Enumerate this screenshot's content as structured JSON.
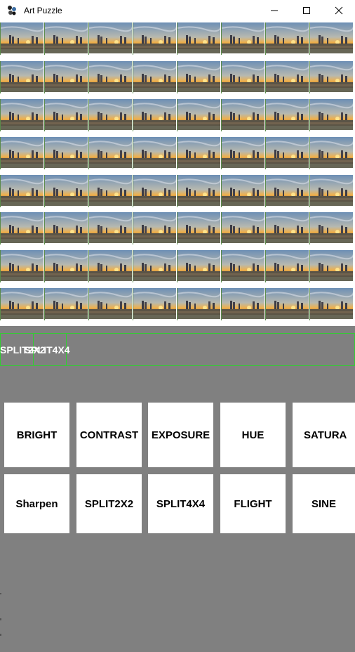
{
  "window": {
    "title": "Art Puzzle"
  },
  "grid": {
    "rows": 8,
    "cols": 8
  },
  "split_strip": [
    "SPLIT2X2",
    "SPLIT4X4"
  ],
  "filters_row1": [
    "BRIGHT",
    "CONTRAST",
    "EXPOSURE",
    "HUE",
    "SATURA"
  ],
  "filters_row2": [
    "Sharpen",
    "SPLIT2X2",
    "SPLIT4X4",
    "FLIGHT",
    "SINE"
  ],
  "colors": {
    "background": "#808080",
    "accent_border": "#33cc33"
  }
}
